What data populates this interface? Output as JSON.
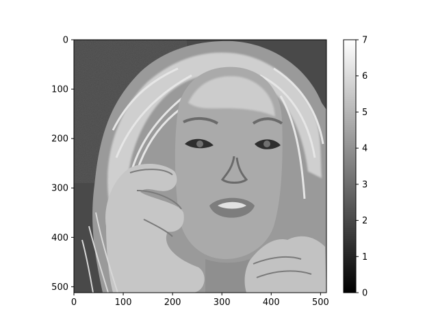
{
  "chart_data": {
    "type": "heatmap",
    "colormap": "gray",
    "image_size": [
      512,
      512
    ],
    "xlim": [
      0,
      512
    ],
    "ylim": [
      512,
      0
    ],
    "x_ticks": [
      0,
      100,
      200,
      300,
      400,
      500
    ],
    "x_tick_labels": [
      "0",
      "100",
      "200",
      "300",
      "400",
      "500"
    ],
    "y_ticks": [
      0,
      100,
      200,
      300,
      400,
      500
    ],
    "y_tick_labels": [
      "0",
      "100",
      "200",
      "300",
      "400",
      "500"
    ],
    "colorbar": {
      "range": [
        0,
        7
      ],
      "ticks": [
        0,
        1,
        2,
        3,
        4,
        5,
        6,
        7
      ],
      "tick_labels": [
        "0",
        "1",
        "2",
        "3",
        "4",
        "5",
        "6",
        "7"
      ],
      "colors": [
        "#000000",
        "#ffffff"
      ]
    },
    "levels": [
      0,
      1,
      2,
      3,
      4,
      5,
      6,
      7
    ],
    "background_level": 2,
    "xlabel": "",
    "ylabel": "",
    "title": ""
  }
}
